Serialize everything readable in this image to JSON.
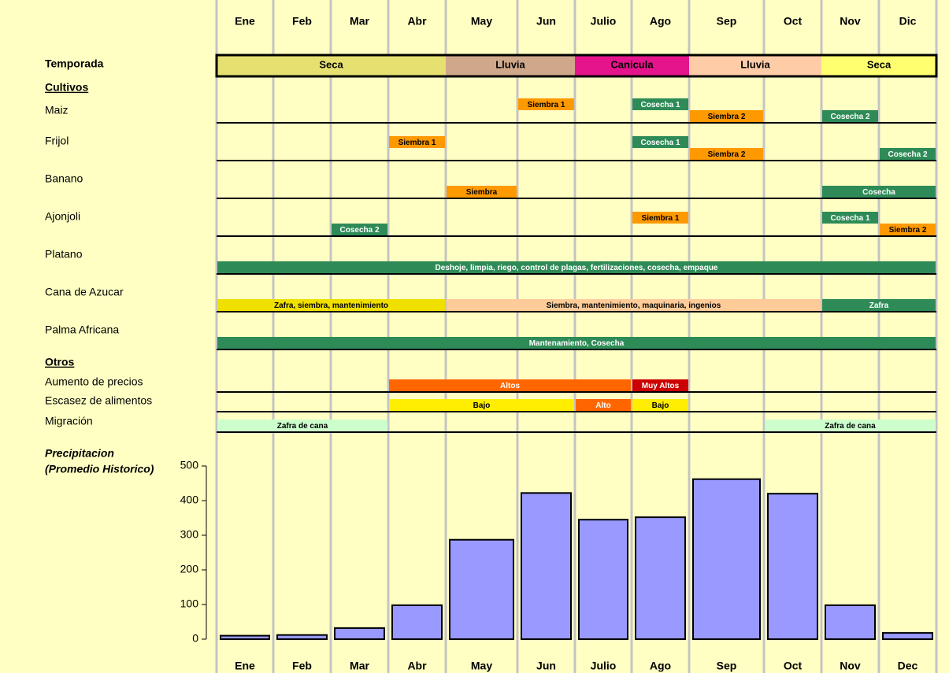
{
  "months": [
    "Ene",
    "Feb",
    "Mar",
    "Abr",
    "May",
    "Jun",
    "Julio",
    "Ago",
    "Sep",
    "Oct",
    "Nov",
    "Dic"
  ],
  "season": {
    "label": "Temporada",
    "periods": [
      {
        "label": "Seca",
        "start": 0,
        "end": 4,
        "color": "#e6e070"
      },
      {
        "label": "Lluvia",
        "start": 4,
        "end": 6,
        "color": "#cfa78a"
      },
      {
        "label": "Canicula",
        "start": 6,
        "end": 8,
        "color": "#e5148c"
      },
      {
        "label": "Lluvia",
        "start": 8,
        "end": 10,
        "color": "#ffcca8"
      },
      {
        "label": "Seca",
        "start": 10,
        "end": 12,
        "color": "#ffff70"
      }
    ]
  },
  "crops_heading": "Cultivos",
  "crops": [
    {
      "label": "Maiz",
      "events": [
        {
          "label": "Siembra 1",
          "start": 5,
          "end": 6,
          "color": "#ff9900"
        },
        {
          "label": "Cosecha 1",
          "start": 7,
          "end": 8,
          "color": "#2e8b57"
        },
        {
          "label": "Siembra 2",
          "start": 8,
          "end": 9,
          "color": "#ff9900"
        },
        {
          "label": "Cosecha 2",
          "start": 10,
          "end": 11,
          "color": "#2e8b57"
        }
      ]
    },
    {
      "label": "Frijol",
      "events": [
        {
          "label": "Siembra 1",
          "start": 3,
          "end": 4,
          "color": "#ff9900"
        },
        {
          "label": "Cosecha 1",
          "start": 7,
          "end": 8,
          "color": "#2e8b57"
        },
        {
          "label": "Siembra 2",
          "start": 8,
          "end": 9,
          "color": "#ff9900"
        },
        {
          "label": "Cosecha 2",
          "start": 11,
          "end": 12,
          "color": "#2e8b57"
        }
      ]
    },
    {
      "label": "Banano",
      "events": [
        {
          "label": "Siembra",
          "start": 4,
          "end": 5,
          "color": "#ff9900"
        },
        {
          "label": "Cosecha",
          "start": 10,
          "end": 12,
          "color": "#2e8b57"
        }
      ]
    },
    {
      "label": "Ajonjoli",
      "events": [
        {
          "label": "Cosecha 2",
          "start": 2,
          "end": 3,
          "color": "#2e8b57"
        },
        {
          "label": "Siembra 1",
          "start": 7,
          "end": 8,
          "color": "#ff9900"
        },
        {
          "label": "Cosecha 1",
          "start": 10,
          "end": 11,
          "color": "#2e8b57"
        },
        {
          "label": "Siembra 2",
          "start": 11,
          "end": 12,
          "color": "#ff9900"
        }
      ]
    },
    {
      "label": "Platano",
      "events": [
        {
          "label": "Deshoje, limpia, riego, control de plagas, fertilizaciones, cosecha, empaque",
          "start": 0,
          "end": 12,
          "color": "#2e8b57"
        }
      ]
    },
    {
      "label": "Cana de Azucar",
      "events": [
        {
          "label": "Zafra, siembra, mantenimiento",
          "start": 0,
          "end": 4,
          "color": "#f0e000"
        },
        {
          "label": "Siembra, mantenimiento, maquinaria, ingenios",
          "start": 4,
          "end": 10,
          "color": "#ffcc99"
        },
        {
          "label": "Zafra",
          "start": 10,
          "end": 12,
          "color": "#2e8b57"
        }
      ]
    },
    {
      "label": "Palma Africana",
      "events": [
        {
          "label": "Mantenamiento, Cosecha",
          "start": 0,
          "end": 12,
          "color": "#2e8b57"
        }
      ]
    }
  ],
  "others_heading": "Otros",
  "others": [
    {
      "label": "Aumento de precios",
      "events": [
        {
          "label": "Altos",
          "start": 3,
          "end": 7,
          "color": "#ff6600"
        },
        {
          "label": "Muy Altos",
          "start": 7,
          "end": 8,
          "color": "#cc0000"
        }
      ]
    },
    {
      "label": "Escasez de alimentos",
      "events": [
        {
          "label": "Bajo",
          "start": 3,
          "end": 6,
          "color": "#ffee00"
        },
        {
          "label": "Alto",
          "start": 6,
          "end": 7,
          "color": "#ff6600"
        },
        {
          "label": "Bajo",
          "start": 7,
          "end": 8,
          "color": "#ffee00"
        }
      ]
    },
    {
      "label": "Migración",
      "events": [
        {
          "label": "Zafra de cana",
          "start": 0,
          "end": 3,
          "color": "#ccffcc"
        },
        {
          "label": "Zafra de cana",
          "start": 9,
          "end": 12,
          "color": "#ccffcc"
        }
      ]
    }
  ],
  "chart_data": {
    "type": "bar",
    "title": [
      "Precipitacion",
      "(Promedio Historico)"
    ],
    "categories": [
      "Ene",
      "Feb",
      "Mar",
      "Abr",
      "May",
      "Jun",
      "Julio",
      "Ago",
      "Sep",
      "Oct",
      "Nov",
      "Dec"
    ],
    "values": [
      10,
      12,
      32,
      98,
      287,
      422,
      345,
      352,
      462,
      420,
      98,
      18
    ],
    "color": "#9999ff",
    "ylim": [
      0,
      500
    ],
    "yticks": [
      0,
      100,
      200,
      300,
      400,
      500
    ]
  }
}
